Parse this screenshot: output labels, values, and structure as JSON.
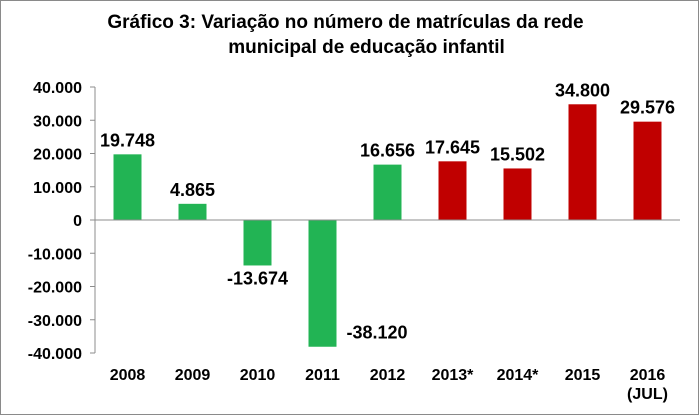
{
  "chart_data": {
    "type": "bar",
    "title_line1": "Gráfico 3: Variação no número de matrículas da rede",
    "title_line2": "municipal de educação infantil",
    "categories": [
      "2008",
      "2009",
      "2010",
      "2011",
      "2012",
      "2013*",
      "2014*",
      "2015",
      "2016"
    ],
    "category_sublabels": [
      "",
      "",
      "",
      "",
      "",
      "",
      "",
      "",
      "(JUL)"
    ],
    "values": [
      19748,
      4865,
      -13674,
      -38120,
      16656,
      17645,
      15502,
      34800,
      29576
    ],
    "value_labels": [
      "19.748",
      "4.865",
      "-13.674",
      "-38.120",
      "16.656",
      "17.645",
      "15.502",
      "34.800",
      "29.576"
    ],
    "bar_colors": [
      "#22b454",
      "#22b454",
      "#22b454",
      "#22b454",
      "#22b454",
      "#c00000",
      "#c00000",
      "#c00000",
      "#c00000"
    ],
    "ylim": [
      -40000,
      40000
    ],
    "yticks": [
      40000,
      30000,
      20000,
      10000,
      0,
      -10000,
      -20000,
      -30000,
      -40000
    ],
    "ytick_labels": [
      "40.000",
      "30.000",
      "20.000",
      "10.000",
      "0",
      "-10.000",
      "-20.000",
      "-30.000",
      "-40.000"
    ],
    "xlabel": "",
    "ylabel": "",
    "grid": false,
    "legend": "none"
  }
}
